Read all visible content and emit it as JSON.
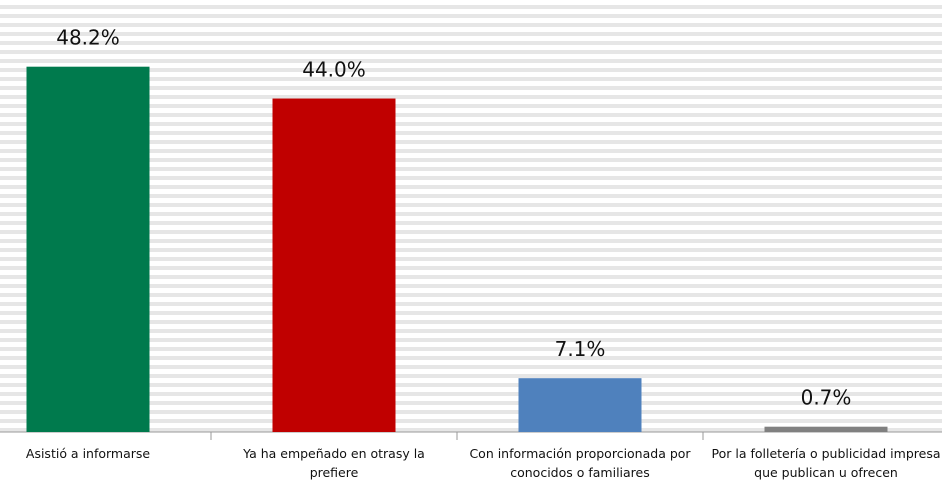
{
  "chart_data": {
    "type": "bar",
    "categories": [
      "Asistió a informarse",
      "Ya ha empeñado en otrasy la prefiere",
      "Con información proporcionada por conocidos o familiares",
      "Por la folletería o publicidad impresa que publican u ofrecen"
    ],
    "values": [
      48.2,
      44.0,
      7.1,
      0.7
    ],
    "value_labels": [
      "48.2%",
      "44.0%",
      "7.1%",
      "0.7%"
    ],
    "colors": [
      "#007a4d",
      "#c00000",
      "#4f81bd",
      "#808080"
    ],
    "ylim": [
      0,
      57
    ]
  }
}
